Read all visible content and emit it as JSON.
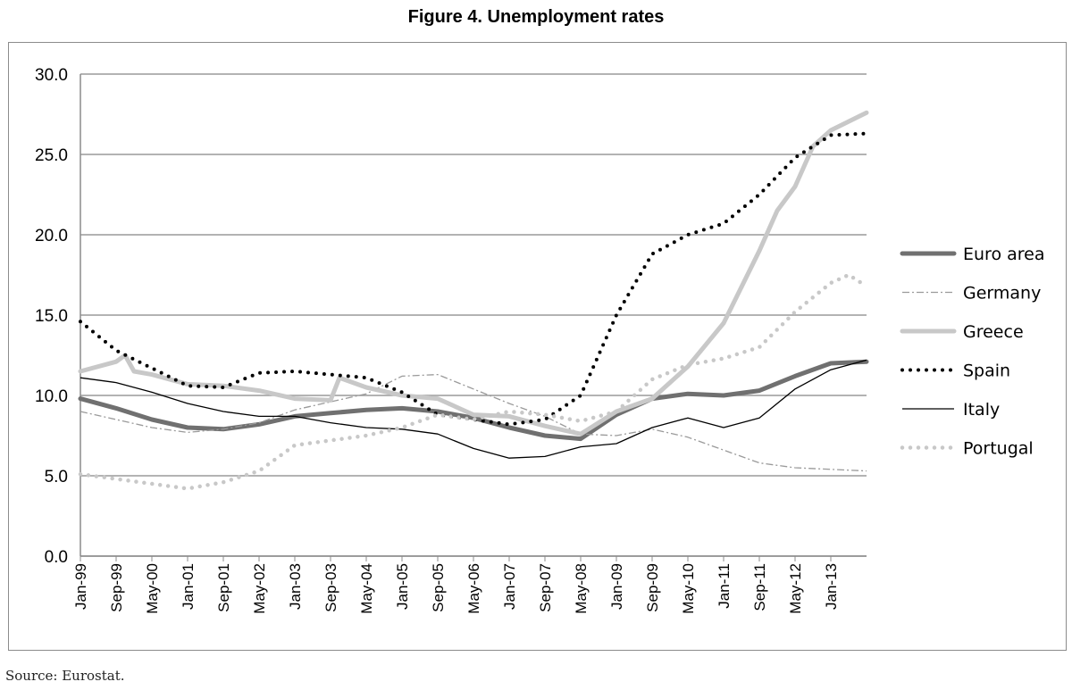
{
  "figure_title": "Figure 4. Unemployment rates",
  "source": "Source: Eurostat.",
  "colors": {
    "euro_area": "#707070",
    "germany": "#9a9a9a",
    "greece": "#c8c8c8",
    "spain": "#000000",
    "italy": "#000000",
    "portugal": "#c8c8c8",
    "grid": "#9a9a9a"
  },
  "chart_data": {
    "type": "line",
    "title": "Figure 4. Unemployment rates",
    "xlabel": "",
    "ylabel": "",
    "ylim": [
      0,
      30
    ],
    "yticks": [
      "0.0",
      "5.0",
      "10.0",
      "15.0",
      "20.0",
      "25.0",
      "30.0"
    ],
    "xlim": [
      "Jan-99",
      "Sep-13"
    ],
    "xticks": [
      "Jan-99",
      "Sep-99",
      "May-00",
      "Jan-01",
      "Sep-01",
      "May-02",
      "Jan-03",
      "Sep-03",
      "May-04",
      "Jan-05",
      "Sep-05",
      "May-06",
      "Jan-07",
      "Sep-07",
      "May-08",
      "Jan-09",
      "Sep-09",
      "May-10",
      "Jan-11",
      "Sep-11",
      "May-12",
      "Jan-13"
    ],
    "grid": "horizontal",
    "legend_position": "right",
    "series": [
      {
        "name": "Euro area",
        "style": "thick-solid",
        "points": [
          [
            "Jan-99",
            9.8
          ],
          [
            "Sep-99",
            9.2
          ],
          [
            "May-00",
            8.5
          ],
          [
            "Jan-01",
            8.0
          ],
          [
            "Sep-01",
            7.9
          ],
          [
            "May-02",
            8.2
          ],
          [
            "Jan-03",
            8.7
          ],
          [
            "Sep-03",
            8.9
          ],
          [
            "May-04",
            9.1
          ],
          [
            "Jan-05",
            9.2
          ],
          [
            "Sep-05",
            9.0
          ],
          [
            "May-06",
            8.6
          ],
          [
            "Jan-07",
            8.0
          ],
          [
            "Sep-07",
            7.5
          ],
          [
            "May-08",
            7.3
          ],
          [
            "Jan-09",
            8.8
          ],
          [
            "Sep-09",
            9.8
          ],
          [
            "May-10",
            10.1
          ],
          [
            "Jan-11",
            10.0
          ],
          [
            "Sep-11",
            10.3
          ],
          [
            "May-12",
            11.2
          ],
          [
            "Jan-13",
            12.0
          ],
          [
            "Sep-13",
            12.1
          ]
        ]
      },
      {
        "name": "Germany",
        "style": "dash-dot",
        "points": [
          [
            "Jan-99",
            9.0
          ],
          [
            "Sep-99",
            8.5
          ],
          [
            "May-00",
            8.0
          ],
          [
            "Jan-01",
            7.7
          ],
          [
            "Sep-01",
            7.9
          ],
          [
            "May-02",
            8.3
          ],
          [
            "Jan-03",
            9.1
          ],
          [
            "Sep-03",
            9.6
          ],
          [
            "May-04",
            10.1
          ],
          [
            "Jan-05",
            11.2
          ],
          [
            "Sep-05",
            11.3
          ],
          [
            "May-06",
            10.4
          ],
          [
            "Jan-07",
            9.5
          ],
          [
            "Sep-07",
            8.7
          ],
          [
            "May-08",
            7.6
          ],
          [
            "Jan-09",
            7.5
          ],
          [
            "Sep-09",
            7.9
          ],
          [
            "May-10",
            7.4
          ],
          [
            "Jan-11",
            6.6
          ],
          [
            "Sep-11",
            5.8
          ],
          [
            "May-12",
            5.5
          ],
          [
            "Jan-13",
            5.4
          ],
          [
            "Sep-13",
            5.3
          ]
        ]
      },
      {
        "name": "Greece",
        "style": "thick-light",
        "points": [
          [
            "Jan-99",
            11.5
          ],
          [
            "Sep-99",
            12.1
          ],
          [
            "Nov-99",
            12.5
          ],
          [
            "Jan-00",
            11.5
          ],
          [
            "May-00",
            11.3
          ],
          [
            "Jan-01",
            10.7
          ],
          [
            "Sep-01",
            10.6
          ],
          [
            "May-02",
            10.3
          ],
          [
            "Jan-03",
            9.8
          ],
          [
            "Sep-03",
            9.7
          ],
          [
            "Nov-03",
            11.1
          ],
          [
            "May-04",
            10.5
          ],
          [
            "Jan-05",
            10.0
          ],
          [
            "Sep-05",
            9.8
          ],
          [
            "May-06",
            8.8
          ],
          [
            "Jan-07",
            8.7
          ],
          [
            "Sep-07",
            8.1
          ],
          [
            "May-08",
            7.6
          ],
          [
            "Jan-09",
            9.0
          ],
          [
            "Sep-09",
            9.8
          ],
          [
            "May-10",
            11.8
          ],
          [
            "Jan-11",
            14.5
          ],
          [
            "Sep-11",
            19.0
          ],
          [
            "Jan-12",
            21.5
          ],
          [
            "May-12",
            23.0
          ],
          [
            "Sep-12",
            25.5
          ],
          [
            "Jan-13",
            26.5
          ],
          [
            "Sep-13",
            27.6
          ]
        ]
      },
      {
        "name": "Spain",
        "style": "dotted",
        "points": [
          [
            "Jan-99",
            14.6
          ],
          [
            "Sep-99",
            12.8
          ],
          [
            "May-00",
            11.7
          ],
          [
            "Jan-01",
            10.6
          ],
          [
            "Sep-01",
            10.5
          ],
          [
            "May-02",
            11.4
          ],
          [
            "Jan-03",
            11.5
          ],
          [
            "Sep-03",
            11.3
          ],
          [
            "May-04",
            11.1
          ],
          [
            "Jan-05",
            10.2
          ],
          [
            "Sep-05",
            8.8
          ],
          [
            "May-06",
            8.5
          ],
          [
            "Jan-07",
            8.2
          ],
          [
            "Sep-07",
            8.5
          ],
          [
            "May-08",
            10.0
          ],
          [
            "Jan-09",
            15.0
          ],
          [
            "Sep-09",
            18.8
          ],
          [
            "May-10",
            20.0
          ],
          [
            "Jan-11",
            20.7
          ],
          [
            "Sep-11",
            22.5
          ],
          [
            "May-12",
            24.8
          ],
          [
            "Jan-13",
            26.2
          ],
          [
            "Sep-13",
            26.3
          ]
        ]
      },
      {
        "name": "Italy",
        "style": "thin-solid",
        "points": [
          [
            "Jan-99",
            11.1
          ],
          [
            "Sep-99",
            10.8
          ],
          [
            "May-00",
            10.2
          ],
          [
            "Jan-01",
            9.5
          ],
          [
            "Sep-01",
            9.0
          ],
          [
            "May-02",
            8.7
          ],
          [
            "Jan-03",
            8.7
          ],
          [
            "Sep-03",
            8.3
          ],
          [
            "May-04",
            8.0
          ],
          [
            "Jan-05",
            7.9
          ],
          [
            "Sep-05",
            7.6
          ],
          [
            "May-06",
            6.7
          ],
          [
            "Jan-07",
            6.1
          ],
          [
            "Sep-07",
            6.2
          ],
          [
            "May-08",
            6.8
          ],
          [
            "Jan-09",
            7.0
          ],
          [
            "Sep-09",
            8.0
          ],
          [
            "May-10",
            8.6
          ],
          [
            "Jan-11",
            8.0
          ],
          [
            "Sep-11",
            8.6
          ],
          [
            "May-12",
            10.4
          ],
          [
            "Jan-13",
            11.6
          ],
          [
            "Sep-13",
            12.2
          ]
        ]
      },
      {
        "name": "Portugal",
        "style": "dotted-light",
        "points": [
          [
            "Jan-99",
            5.1
          ],
          [
            "Sep-99",
            4.8
          ],
          [
            "May-00",
            4.5
          ],
          [
            "Jan-01",
            4.2
          ],
          [
            "Sep-01",
            4.6
          ],
          [
            "May-02",
            5.3
          ],
          [
            "Jan-03",
            6.9
          ],
          [
            "Sep-03",
            7.2
          ],
          [
            "May-04",
            7.5
          ],
          [
            "Jan-05",
            8.0
          ],
          [
            "Sep-05",
            8.8
          ],
          [
            "May-06",
            8.5
          ],
          [
            "Jan-07",
            9.0
          ],
          [
            "Sep-07",
            8.8
          ],
          [
            "May-08",
            8.4
          ],
          [
            "Jan-09",
            9.0
          ],
          [
            "Sep-09",
            11.0
          ],
          [
            "May-10",
            11.9
          ],
          [
            "Jan-11",
            12.3
          ],
          [
            "Sep-11",
            13.0
          ],
          [
            "May-12",
            15.2
          ],
          [
            "Jan-13",
            17.0
          ],
          [
            "May-13",
            17.5
          ],
          [
            "Sep-13",
            16.8
          ]
        ]
      }
    ]
  }
}
